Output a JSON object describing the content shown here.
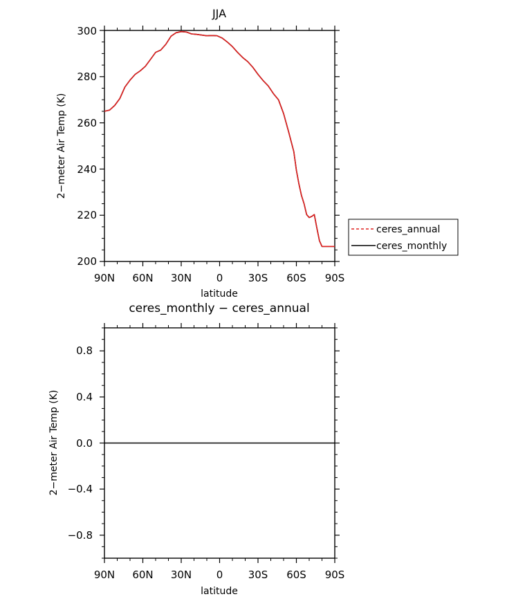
{
  "charts": [
    {
      "title": "JJA",
      "xlabel": "latitude",
      "ylabel": "2−meter Air Temp (K)",
      "x_ticks": [
        "90N",
        "60N",
        "30N",
        "0",
        "30S",
        "60S",
        "90S"
      ],
      "y_ticks": [
        "200",
        "220",
        "240",
        "260",
        "280",
        "300"
      ]
    },
    {
      "title": "ceres_monthly − ceres_annual",
      "xlabel": "latitude",
      "ylabel": "2−meter Air Temp (K)",
      "x_ticks": [
        "90N",
        "60N",
        "30N",
        "0",
        "30S",
        "60S",
        "90S"
      ],
      "y_ticks": [
        "−0.8",
        "−0.4",
        "0.0",
        "0.4",
        "0.8"
      ]
    }
  ],
  "legend": {
    "items": [
      {
        "label": "ceres_annual",
        "color": "#e0201f",
        "dash": "dashed"
      },
      {
        "label": "ceres_monthly",
        "color": "#000000",
        "dash": "solid"
      }
    ]
  },
  "chart_data": [
    {
      "type": "line",
      "title": "JJA",
      "xlabel": "latitude",
      "ylabel": "2−meter Air Temp (K)",
      "xlim": [
        90,
        -90
      ],
      "ylim": [
        200,
        300
      ],
      "x_ticks": [
        90,
        60,
        30,
        0,
        -30,
        -60,
        -90
      ],
      "y_ticks": [
        200,
        220,
        240,
        260,
        280,
        300
      ],
      "legend_position": "right",
      "series": [
        {
          "name": "ceres_annual",
          "color": "#e0201f",
          "dash": "dashed",
          "x": [
            90,
            86,
            82,
            78,
            74,
            70,
            66,
            62,
            58,
            54,
            50,
            46,
            42,
            38,
            34,
            30,
            26,
            22,
            18,
            14,
            10,
            6,
            2,
            -2,
            -6,
            -10,
            -14,
            -18,
            -22,
            -26,
            -30,
            -34,
            -38,
            -42,
            -46,
            -50,
            -54,
            -58,
            -60,
            -62,
            -64,
            -66,
            -68,
            -70,
            -72,
            -74,
            -76,
            -78,
            -80,
            -82,
            -84,
            -86,
            -88,
            -90
          ],
          "y": [
            265,
            265.5,
            267.5,
            270.5,
            275.5,
            278.5,
            281,
            282.5,
            284.5,
            287.5,
            290.5,
            291.5,
            294,
            297.5,
            299,
            299.5,
            299.3,
            298.5,
            298.3,
            298,
            297.7,
            297.8,
            297.7,
            296.7,
            295,
            293,
            290.5,
            288.3,
            286.5,
            284,
            281,
            278.3,
            276,
            272.7,
            270,
            264,
            256,
            247.5,
            239.5,
            233.5,
            228.5,
            225,
            220.3,
            219,
            219.5,
            220.3,
            214.5,
            209,
            206.5,
            206.5,
            206.5,
            206.5,
            206.5,
            206.5
          ]
        },
        {
          "name": "ceres_monthly",
          "color": "#000000",
          "dash": "solid",
          "x": [
            90,
            86,
            82,
            78,
            74,
            70,
            66,
            62,
            58,
            54,
            50,
            46,
            42,
            38,
            34,
            30,
            26,
            22,
            18,
            14,
            10,
            6,
            2,
            -2,
            -6,
            -10,
            -14,
            -18,
            -22,
            -26,
            -30,
            -34,
            -38,
            -42,
            -46,
            -50,
            -54,
            -58,
            -60,
            -62,
            -64,
            -66,
            -68,
            -70,
            -72,
            -74,
            -76,
            -78,
            -80,
            -82,
            -84,
            -86,
            -88,
            -90
          ],
          "y": [
            265,
            265.5,
            267.5,
            270.5,
            275.5,
            278.5,
            281,
            282.5,
            284.5,
            287.5,
            290.5,
            291.5,
            294,
            297.5,
            299,
            299.5,
            299.3,
            298.5,
            298.3,
            298,
            297.7,
            297.8,
            297.7,
            296.7,
            295,
            293,
            290.5,
            288.3,
            286.5,
            284,
            281,
            278.3,
            276,
            272.7,
            270,
            264,
            256,
            247.5,
            239.5,
            233.5,
            228.5,
            225,
            220.3,
            219,
            219.5,
            220.3,
            214.5,
            209,
            206.5,
            206.5,
            206.5,
            206.5,
            206.5,
            206.5
          ]
        }
      ]
    },
    {
      "type": "line",
      "title": "ceres_monthly − ceres_annual",
      "xlabel": "latitude",
      "ylabel": "2−meter Air Temp (K)",
      "xlim": [
        90,
        -90
      ],
      "ylim": [
        -1,
        1
      ],
      "x_ticks": [
        90,
        60,
        30,
        0,
        -30,
        -60,
        -90
      ],
      "y_ticks": [
        -0.8,
        -0.4,
        0.0,
        0.4,
        0.8
      ],
      "series": [
        {
          "color": "#000000",
          "dash": "solid",
          "x": [
            90,
            -90
          ],
          "y": [
            0,
            0
          ]
        }
      ]
    }
  ]
}
